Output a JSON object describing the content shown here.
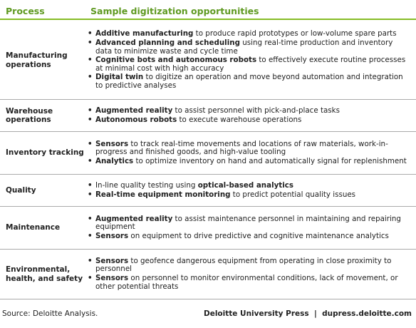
{
  "header": {
    "process": "Process",
    "opportunities": "Sample digitization opportunities"
  },
  "rows": [
    {
      "process": "Manufacturing operations",
      "bullets": [
        [
          {
            "t": "Additive manufacturing",
            "b": true
          },
          {
            "t": " to produce rapid prototypes or low-volume spare parts"
          }
        ],
        [
          {
            "t": "Advanced planning and scheduling",
            "b": true
          },
          {
            "t": " using real-time production and inventory data to minimize waste and cycle time"
          }
        ],
        [
          {
            "t": "Cognitive bots and autonomous robots",
            "b": true
          },
          {
            "t": " to effectively execute routine processes at minimal cost with high accuracy"
          }
        ],
        [
          {
            "t": "Digital twin",
            "b": true
          },
          {
            "t": " to digitize an operation and move beyond automation and integration to predictive analyses"
          }
        ]
      ]
    },
    {
      "process": "Warehouse operations",
      "bullets": [
        [
          {
            "t": "Augmented reality",
            "b": true
          },
          {
            "t": " to assist personnel with pick-and-place tasks"
          }
        ],
        [
          {
            "t": "Autonomous robots",
            "b": true
          },
          {
            "t": " to execute warehouse operations"
          }
        ]
      ]
    },
    {
      "process": "Inventory tracking",
      "bullets": [
        [
          {
            "t": "Sensors",
            "b": true
          },
          {
            "t": " to track real-time movements and locations of raw materials, work-in-progress and finished goods, and high-value tooling"
          }
        ],
        [
          {
            "t": "Analytics",
            "b": true
          },
          {
            "t": " to optimize inventory on hand and automatically signal for replenishment"
          }
        ]
      ]
    },
    {
      "process": "Quality",
      "bullets": [
        [
          {
            "t": "In-line quality testing using "
          },
          {
            "t": "optical-based analytics",
            "b": true
          }
        ],
        [
          {
            "t": "Real-time equipment monitoring",
            "b": true
          },
          {
            "t": " to predict potential quality issues"
          }
        ]
      ]
    },
    {
      "process": "Maintenance",
      "bullets": [
        [
          {
            "t": "Augmented reality",
            "b": true
          },
          {
            "t": " to assist maintenance personnel in maintaining and repairing equipment"
          }
        ],
        [
          {
            "t": "Sensors",
            "b": true
          },
          {
            "t": " on equipment to drive predictive and cognitive maintenance analytics"
          }
        ]
      ]
    },
    {
      "process": "Environmental, health, and safety",
      "bullets": [
        [
          {
            "t": "Sensors",
            "b": true
          },
          {
            "t": " to geofence dangerous equipment from operating in close proximity to personnel"
          }
        ],
        [
          {
            "t": "Sensors",
            "b": true
          },
          {
            "t": " on personnel to monitor environmental conditions, lack of movement, or other potential threats"
          }
        ]
      ]
    }
  ],
  "footer": {
    "source": "Source: Deloitte Analysis.",
    "publisher": "Deloitte University Press",
    "url": "dupress.deloitte.com"
  }
}
